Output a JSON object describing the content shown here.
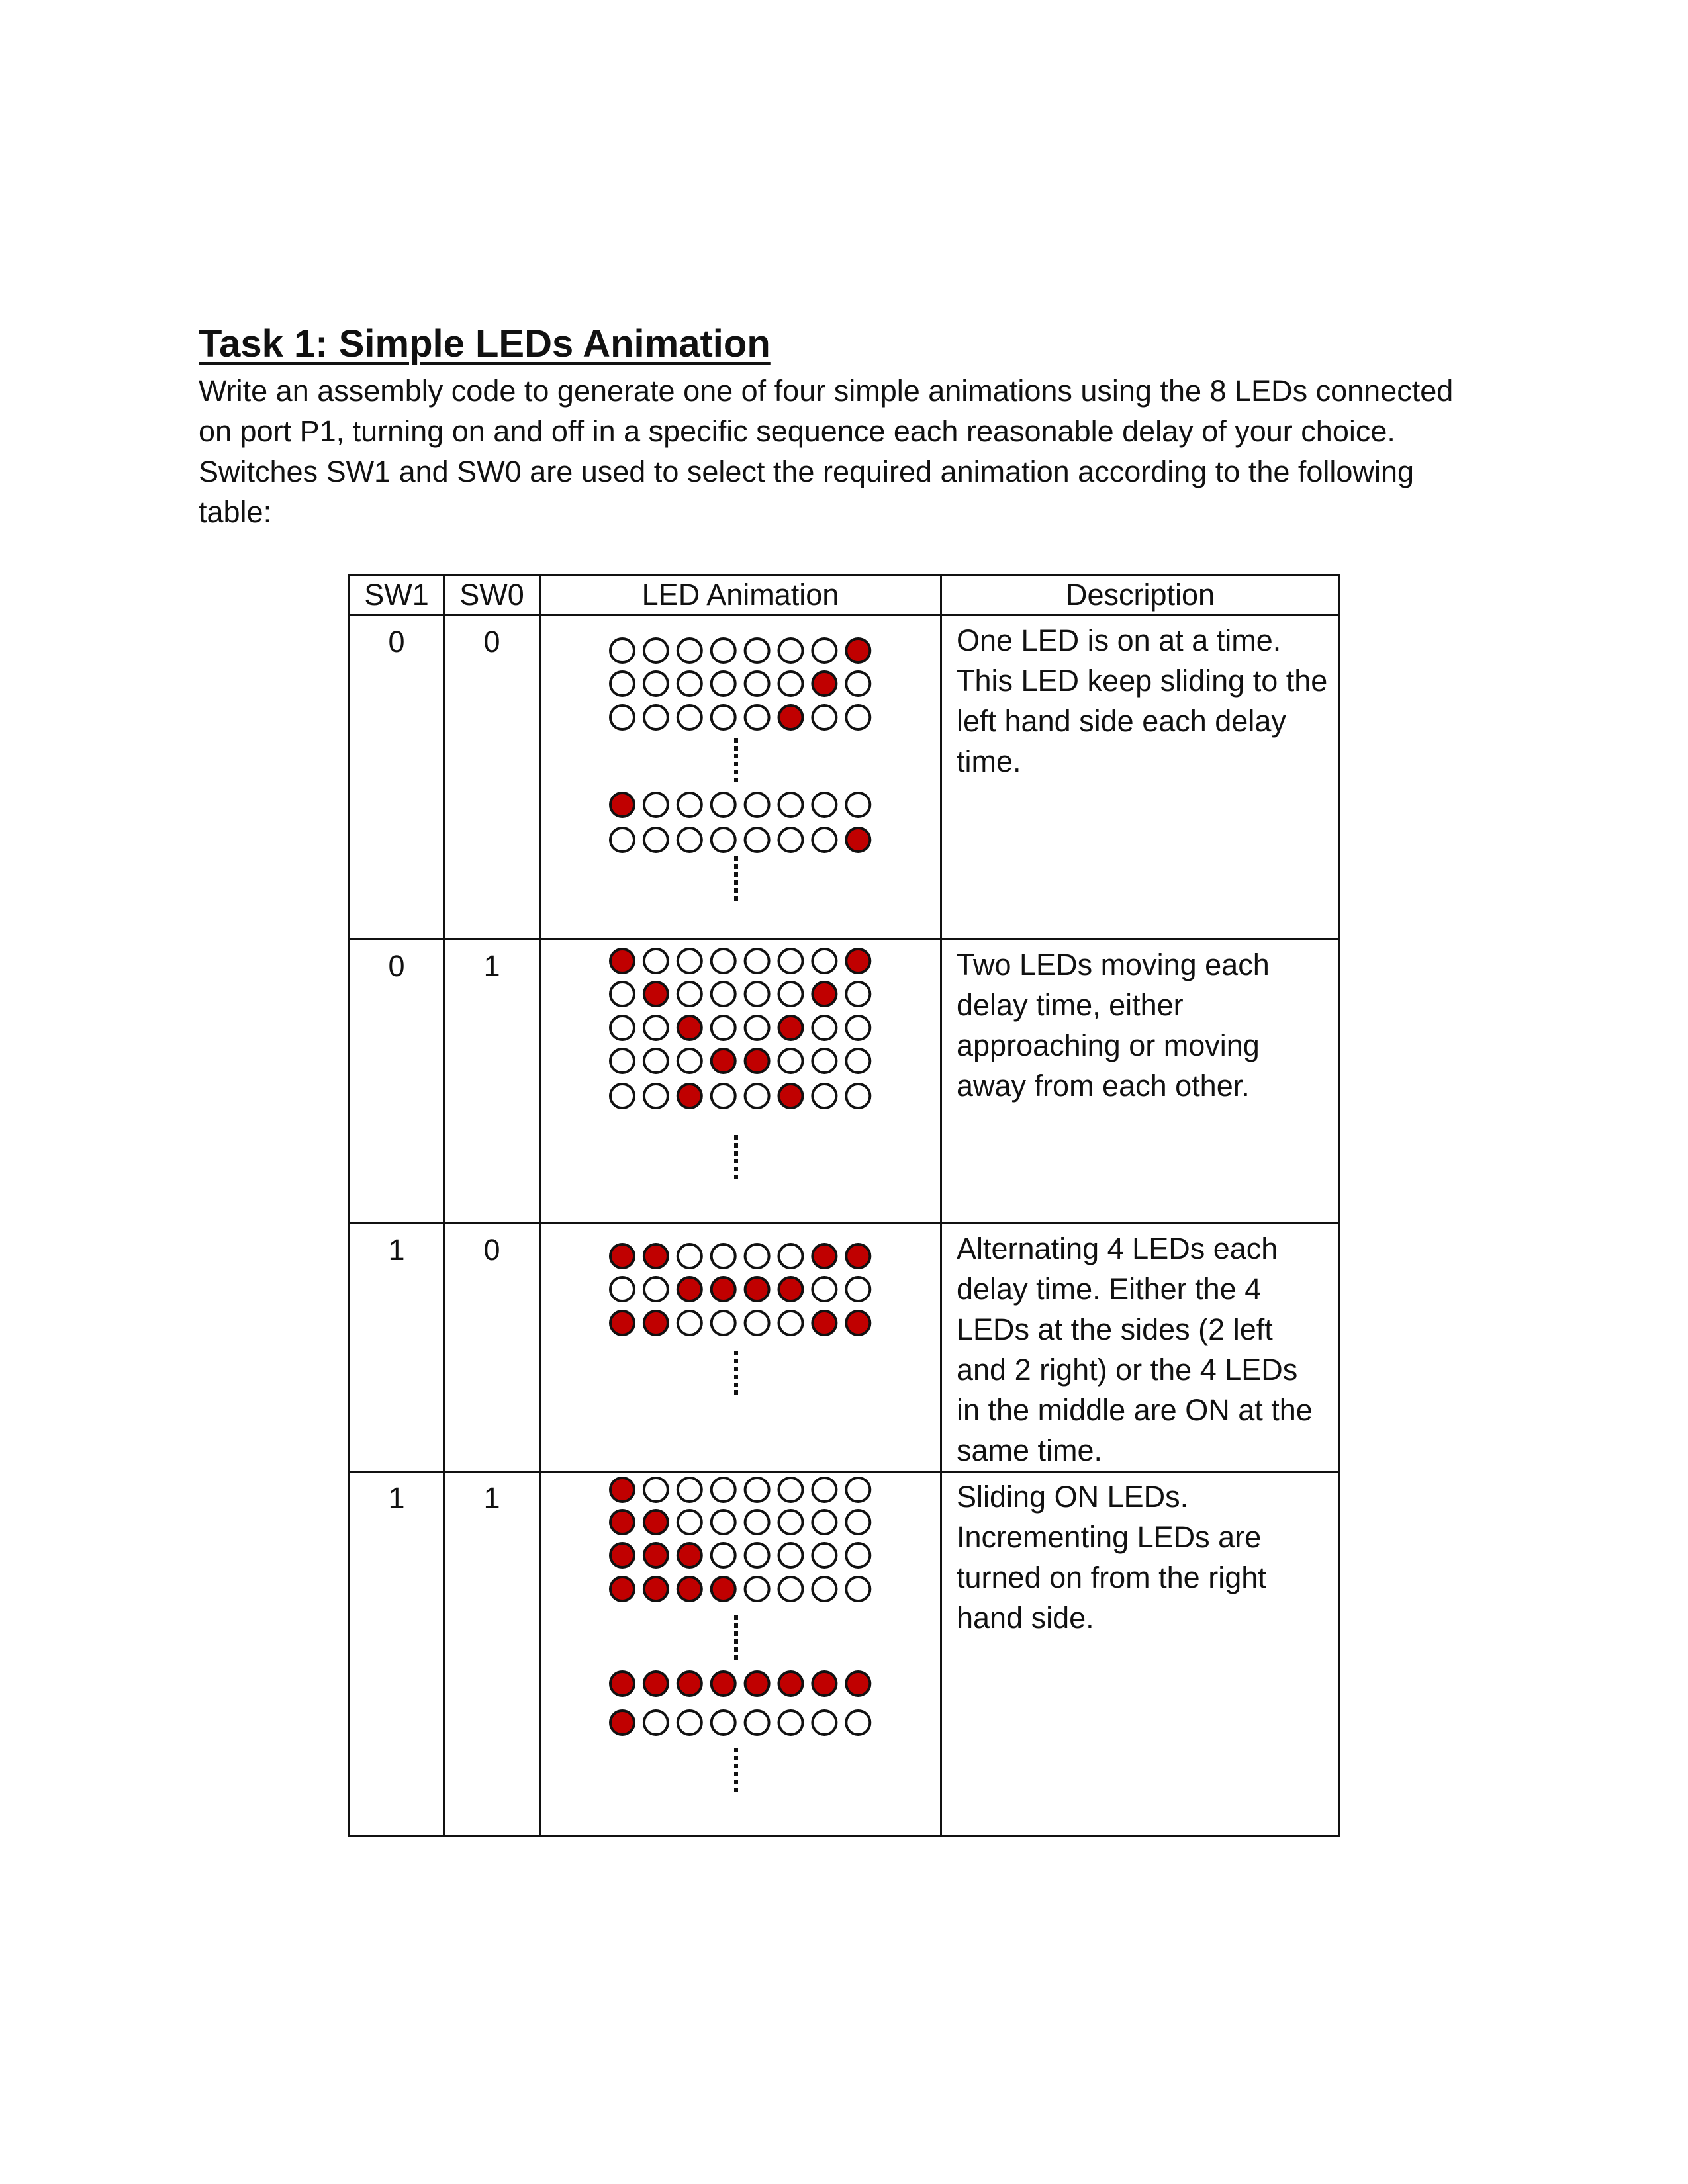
{
  "title": "Task 1: Simple LEDs Animation",
  "intro_lines": [
    "Write an assembly code to generate one of four simple animations using the 8 LEDs connected",
    "on port P1, turning on and off in a specific sequence each reasonable delay of your choice.",
    "Switches SW1 and SW0 are used to select the required animation according to the following",
    "table:"
  ],
  "table": {
    "headers": [
      "SW1",
      "SW0",
      "LED Animation",
      "Description"
    ],
    "rows": [
      {
        "sw1": "0",
        "sw0": "0",
        "frames": [
          "00000001",
          "00000010",
          "00000100",
          "...",
          "10000000",
          "00000001",
          "..."
        ],
        "description_lines": [
          "One LED is on at a time.",
          "This LED keep sliding to the",
          "left hand side each delay",
          "time."
        ]
      },
      {
        "sw1": "0",
        "sw0": "1",
        "frames": [
          "10000001",
          "01000010",
          "00100100",
          "00011000",
          "00100100",
          "..."
        ],
        "description_lines": [
          "Two LEDs moving each",
          "delay time, either",
          "approaching or moving",
          "away from each other."
        ]
      },
      {
        "sw1": "1",
        "sw0": "0",
        "frames": [
          "11000011",
          "00111100",
          "11000011",
          "..."
        ],
        "description_lines": [
          "Alternating 4 LEDs each",
          "delay time. Either the 4",
          "LEDs at the sides (2 left",
          "and 2 right) or the 4 LEDs",
          "in the middle are ON at the",
          "same time."
        ]
      },
      {
        "sw1": "1",
        "sw0": "1",
        "frames": [
          "10000000",
          "11000000",
          "11100000",
          "11110000",
          "...",
          "11111111",
          "10000000",
          "..."
        ],
        "description_lines": [
          "Sliding ON LEDs.",
          "Incrementing LEDs are",
          "turned on from the right",
          "hand side."
        ]
      }
    ]
  },
  "colors": {
    "led_on": "#c00000",
    "led_off": "#ffffff",
    "outline": "#111111"
  }
}
